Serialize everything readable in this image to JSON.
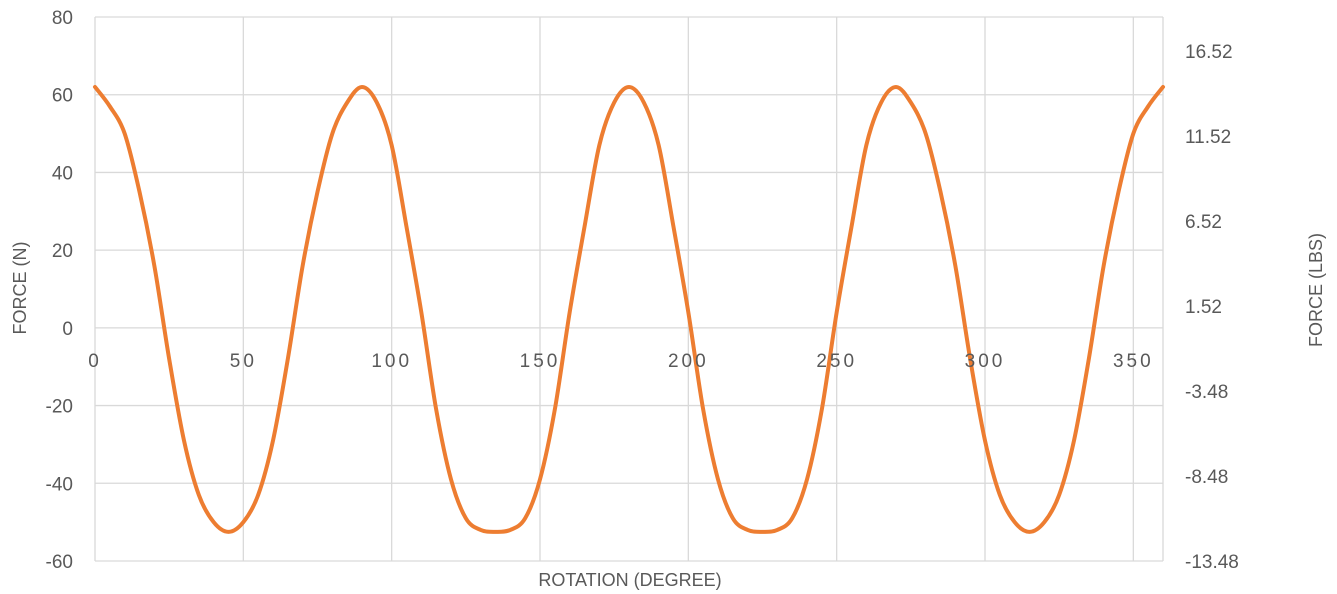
{
  "chart_data": {
    "type": "line",
    "title": "",
    "xlabel": "ROTATION (DEGREE)",
    "ylabel": "FORCE (N)",
    "y2label": "FORCE (LBS)",
    "xlim": [
      0,
      360
    ],
    "ylim": [
      -60,
      80
    ],
    "y2lim": [
      -13.48,
      18.52
    ],
    "xticks": [
      0,
      50,
      100,
      150,
      200,
      250,
      300,
      350
    ],
    "yticks": [
      -60,
      -40,
      -20,
      0,
      20,
      40,
      60,
      80
    ],
    "y2ticks": [
      "-13.48",
      "-8.48",
      "-3.48",
      "1.52",
      "6.52",
      "11.52",
      "16.52"
    ],
    "grid": true,
    "legend": "none",
    "series": [
      {
        "color": "#ed7d31",
        "x": [
          0,
          5,
          10,
          15,
          20,
          25,
          30,
          35,
          40,
          45,
          50,
          55,
          60,
          65,
          70,
          75,
          80,
          85,
          90,
          95,
          100,
          105,
          110,
          115,
          120,
          125,
          130,
          135,
          140,
          145,
          150,
          155,
          160,
          165,
          170,
          175,
          180,
          185,
          190,
          195,
          200,
          205,
          210,
          215,
          220,
          225,
          230,
          235,
          240,
          245,
          250,
          255,
          260,
          265,
          270,
          275,
          280,
          285,
          290,
          295,
          300,
          305,
          310,
          315,
          320,
          325,
          330,
          335,
          340,
          345,
          350,
          355,
          360
        ],
        "y": [
          62,
          57,
          50,
          35,
          16,
          -8,
          -29,
          -43,
          -50,
          -52.5,
          -50,
          -43,
          -29,
          -8,
          16,
          35,
          50,
          58,
          62,
          58,
          47,
          26,
          4,
          -21,
          -39,
          -49,
          -52,
          -52.5,
          -52,
          -49,
          -39,
          -21,
          4,
          26,
          47,
          58,
          62,
          58,
          47,
          26,
          4,
          -21,
          -39,
          -49,
          -52,
          -52.5,
          -52,
          -49,
          -39,
          -21,
          4,
          26,
          47,
          58,
          62,
          58,
          50,
          35,
          16,
          -8,
          -29,
          -43,
          -50,
          -52.5,
          -50,
          -43,
          -29,
          -8,
          16,
          35,
          50,
          57,
          62
        ]
      }
    ]
  }
}
